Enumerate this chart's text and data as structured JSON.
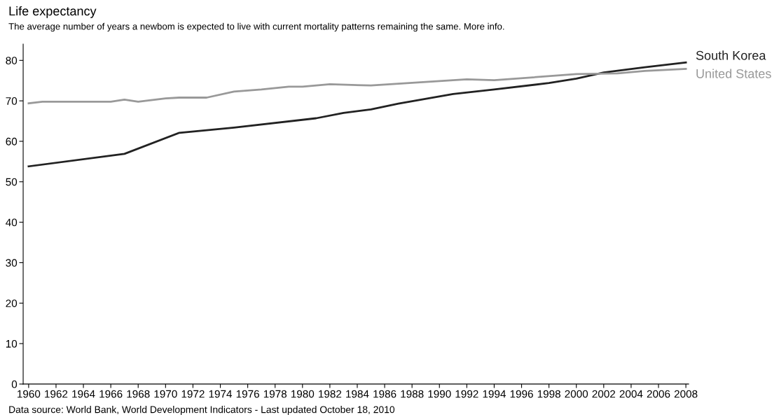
{
  "chart_data": {
    "type": "line",
    "title": "Life expectancy",
    "subtitle": "The average number of years a newbom is expected to live with current mortality patterns remaining the same. More info.",
    "annotations": [
      "Data source: World Bank, World Development Indicators - Last updated October 18, 2010"
    ],
    "series": [
      {
        "name": "South Korea",
        "color": "#222222",
        "x": [
          1960,
          1967,
          1971,
          1975,
          1981,
          1983,
          1985,
          1987,
          1991,
          1994,
          1998,
          2000,
          2002,
          2005,
          2008
        ],
        "values": [
          53.8,
          56.9,
          62.1,
          63.4,
          65.7,
          67.0,
          67.9,
          69.3,
          71.7,
          72.8,
          74.4,
          75.5,
          77.0,
          78.3,
          79.5
        ]
      },
      {
        "name": "United States",
        "color": "#999999",
        "x": [
          1960,
          1961,
          1966,
          1967,
          1968,
          1970,
          1971,
          1973,
          1975,
          1977,
          1979,
          1980,
          1982,
          1985,
          1992,
          1994,
          2000,
          2003,
          2005,
          2008
        ],
        "values": [
          69.4,
          69.8,
          69.8,
          70.3,
          69.8,
          70.6,
          70.8,
          70.8,
          72.3,
          72.8,
          73.5,
          73.5,
          74.1,
          73.8,
          75.3,
          75.1,
          76.6,
          76.8,
          77.4,
          77.9
        ]
      }
    ],
    "xlim": [
      1959.6,
      2008.2
    ],
    "xticks": [
      1960,
      1962,
      1964,
      1966,
      1968,
      1970,
      1972,
      1974,
      1976,
      1978,
      1980,
      1982,
      1984,
      1986,
      1988,
      1990,
      1992,
      1994,
      1996,
      1998,
      2000,
      2002,
      2004,
      2006,
      2008
    ],
    "ylim": [
      0,
      84
    ],
    "yticks": [
      0,
      10,
      20,
      30,
      40,
      50,
      60,
      70,
      80
    ],
    "grid": false,
    "legend": false,
    "marker": "none",
    "line_style": "solid"
  }
}
